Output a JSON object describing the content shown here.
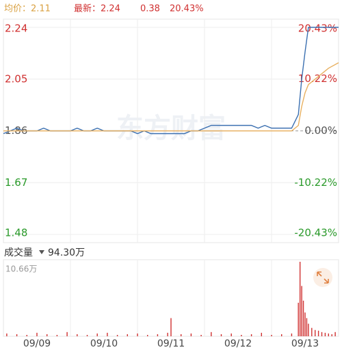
{
  "header": {
    "avg": "均价：2.11",
    "latest": "最新：2.24",
    "change": "0.38",
    "pct": "20.43%"
  },
  "watermark": "东方财富",
  "chart_data": [
    {
      "type": "line",
      "x": [
        0,
        2,
        4,
        6,
        8,
        10,
        12,
        14,
        16,
        18,
        20,
        22,
        24,
        26,
        28,
        30,
        32,
        34,
        36,
        38,
        40,
        42,
        44,
        46,
        48,
        50,
        52,
        54,
        56,
        58,
        60,
        62,
        64,
        66,
        68,
        70,
        72,
        74,
        76,
        78,
        80,
        82,
        84,
        86,
        88,
        89,
        90,
        91,
        93,
        95,
        97,
        100
      ],
      "series": [
        {
          "color": "#3a6fb0",
          "values": [
            1.85,
            1.86,
            1.87,
            1.86,
            1.86,
            1.86,
            1.87,
            1.86,
            1.86,
            1.86,
            1.86,
            1.87,
            1.86,
            1.86,
            1.87,
            1.86,
            1.86,
            1.86,
            1.86,
            1.86,
            1.85,
            1.86,
            1.85,
            1.85,
            1.85,
            1.85,
            1.85,
            1.85,
            1.86,
            1.86,
            1.87,
            1.88,
            1.88,
            1.88,
            1.88,
            1.88,
            1.88,
            1.88,
            1.87,
            1.88,
            1.87,
            1.87,
            1.87,
            1.87,
            1.92,
            2.05,
            2.15,
            2.24,
            2.24,
            2.24,
            2.24,
            2.24
          ]
        },
        {
          "color": "#e8b060",
          "values": [
            1.86,
            1.86,
            1.86,
            1.86,
            1.86,
            1.86,
            1.86,
            1.86,
            1.86,
            1.86,
            1.86,
            1.86,
            1.86,
            1.86,
            1.86,
            1.86,
            1.86,
            1.86,
            1.86,
            1.86,
            1.86,
            1.86,
            1.86,
            1.86,
            1.86,
            1.86,
            1.86,
            1.86,
            1.86,
            1.86,
            1.86,
            1.86,
            1.86,
            1.86,
            1.86,
            1.86,
            1.86,
            1.86,
            1.86,
            1.86,
            1.86,
            1.86,
            1.86,
            1.86,
            1.88,
            1.95,
            2.0,
            2.03,
            2.05,
            2.07,
            2.09,
            2.11
          ]
        }
      ],
      "xlim": [
        0,
        100
      ],
      "xticks": [
        {
          "value": 10,
          "label": "09/09"
        },
        {
          "value": 30,
          "label": "09/10"
        },
        {
          "value": 50,
          "label": "09/11"
        },
        {
          "value": 70,
          "label": "09/12"
        },
        {
          "value": 90,
          "label": "09/13"
        }
      ],
      "ylim": [
        1.48,
        2.24
      ],
      "yticks": [
        1.48,
        1.67,
        1.86,
        2.05,
        2.24
      ],
      "y2lim": [
        -20.43,
        20.43
      ],
      "y2ticks": [
        {
          "value": -20.43,
          "label": "-20.43%"
        },
        {
          "value": -10.22,
          "label": "-10.22%"
        },
        {
          "value": 0,
          "label": "0.00%"
        },
        {
          "value": 10.22,
          "label": "10.22%"
        },
        {
          "value": 20.43,
          "label": "20.43%"
        }
      ]
    },
    {
      "type": "bar",
      "title": "成交量",
      "total": "94.30万",
      "color": "#d03030",
      "x": [
        1,
        4,
        7,
        10,
        13,
        16,
        19,
        22,
        25,
        28,
        31,
        34,
        37,
        40,
        43,
        46,
        49,
        50,
        53,
        56,
        59,
        62,
        65,
        68,
        71,
        74,
        77,
        80,
        83,
        86,
        88,
        88.5,
        89,
        89.5,
        90,
        90.5,
        91,
        92,
        93,
        94,
        95,
        96,
        97,
        98,
        99
      ],
      "values": [
        0.4,
        0.3,
        0.2,
        0.5,
        0.3,
        0.2,
        0.6,
        0.3,
        0.2,
        0.4,
        0.5,
        0.2,
        0.3,
        0.4,
        0.2,
        0.3,
        0.5,
        2.6,
        0.3,
        0.4,
        0.2,
        0.6,
        0.3,
        0.4,
        0.2,
        0.3,
        0.5,
        0.2,
        0.3,
        0.4,
        4.8,
        10.66,
        7.2,
        5.1,
        3.4,
        2.6,
        1.8,
        1.2,
        0.9,
        0.8,
        0.6,
        0.5,
        0.4,
        0.3,
        0.6
      ],
      "xlim": [
        0,
        100
      ],
      "ylim": [
        0,
        10.66
      ],
      "yticks": [
        {
          "value": 10.66,
          "label": "10.66万"
        }
      ]
    }
  ]
}
